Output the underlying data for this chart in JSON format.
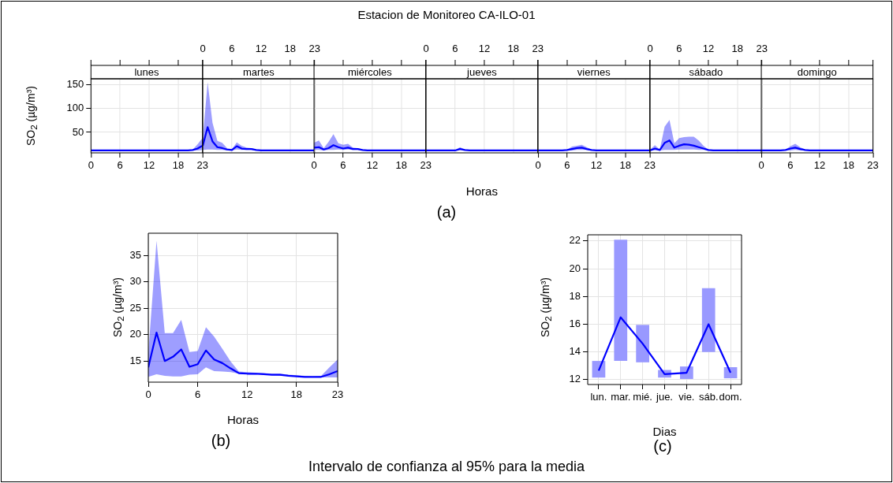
{
  "chart_data": [
    {
      "type": "line",
      "subtitle": "lunes",
      "ylabel": "SO$_{2}$ (µg/m³)",
      "grid": true,
      "xlim": [
        0,
        23
      ],
      "xticks": [
        0,
        6,
        12,
        18,
        23
      ],
      "ylim": [
        7,
        162
      ],
      "yticks": [
        50,
        100,
        150
      ],
      "series": [
        {
          "color": "#0000ff",
          "x": [
            0,
            1,
            2,
            3,
            4,
            5,
            6,
            7,
            8,
            9,
            10,
            11,
            12,
            13,
            14,
            15,
            16,
            17,
            18,
            19,
            20,
            21,
            22,
            23
          ],
          "values": [
            12,
            12,
            12,
            12,
            12,
            12,
            12,
            12,
            12,
            12,
            12,
            12,
            12,
            12,
            12,
            12,
            12,
            12,
            12,
            12,
            12,
            13,
            16,
            22
          ],
          "lower": [
            12,
            12,
            12,
            12,
            12,
            12,
            12,
            12,
            12,
            12,
            12,
            12,
            12,
            12,
            12,
            12,
            12,
            12,
            12,
            12,
            12,
            12,
            12,
            13
          ],
          "upper": [
            13,
            13,
            13,
            13,
            13,
            13,
            13,
            13,
            13,
            13,
            13,
            13,
            13,
            13,
            13,
            13,
            13,
            13,
            13,
            13,
            13,
            14,
            25,
            38
          ]
        }
      ]
    },
    {
      "type": "line",
      "subtitle": "martes",
      "grid": true,
      "tick_labels": "x",
      "xlim": [
        0,
        23
      ],
      "x2lim": [
        0,
        23
      ],
      "x2ticks": [
        0,
        6,
        12,
        18,
        23
      ],
      "ylim": [
        7,
        162
      ],
      "yticks": [
        50,
        100,
        150
      ],
      "series": [
        {
          "color": "#0000ff",
          "x": [
            0,
            1,
            2,
            3,
            4,
            5,
            6,
            7,
            8,
            9,
            10,
            11,
            12,
            13,
            14,
            15,
            16,
            17,
            18,
            19,
            20,
            21,
            22,
            23
          ],
          "values": [
            22,
            61,
            31,
            19,
            17,
            14,
            13,
            21,
            16,
            15,
            15,
            13,
            12,
            12,
            12,
            12,
            12,
            12,
            12,
            12,
            12,
            12,
            12,
            12
          ],
          "lower": [
            13,
            14,
            14,
            13,
            13,
            12,
            12,
            14,
            13,
            13,
            13,
            12,
            12,
            12,
            12,
            12,
            12,
            12,
            12,
            12,
            12,
            12,
            12,
            12
          ],
          "upper": [
            38,
            155,
            70,
            32,
            28,
            17,
            15,
            29,
            22,
            18,
            17,
            14,
            13,
            13,
            13,
            13,
            13,
            13,
            13,
            13,
            13,
            13,
            13,
            13
          ]
        }
      ]
    },
    {
      "type": "line",
      "subtitle": "miércoles",
      "grid": true,
      "tick_labels": "x",
      "xlim": [
        0,
        23
      ],
      "xticks": [
        0,
        6,
        12,
        18,
        23
      ],
      "ylim": [
        7,
        162
      ],
      "yticks": [
        50,
        100,
        150
      ],
      "series": [
        {
          "color": "#0000ff",
          "x": [
            0,
            1,
            2,
            3,
            4,
            5,
            6,
            7,
            8,
            9,
            10,
            11,
            12,
            13,
            14,
            15,
            16,
            17,
            18,
            19,
            20,
            21,
            22,
            23
          ],
          "values": [
            18,
            19,
            14,
            17,
            23,
            19,
            16,
            18,
            15,
            15,
            13,
            12,
            12,
            12,
            12,
            12,
            12,
            12,
            12,
            12,
            12,
            12,
            12,
            12
          ],
          "lower": [
            13,
            13,
            12,
            13,
            13,
            14,
            13,
            14,
            13,
            13,
            12,
            12,
            12,
            12,
            12,
            12,
            12,
            12,
            12,
            12,
            12,
            12,
            12,
            12
          ],
          "upper": [
            28,
            33,
            17,
            30,
            46,
            27,
            24,
            26,
            18,
            17,
            14,
            13,
            13,
            13,
            13,
            13,
            13,
            13,
            13,
            13,
            13,
            13,
            13,
            13
          ]
        }
      ]
    },
    {
      "type": "line",
      "title": "Estacion de Monitoreo CA-ILO-01",
      "subtitle": "jueves",
      "xlabel": "Horas",
      "annotations": [
        "(a)"
      ],
      "grid": true,
      "tick_labels": "x",
      "xlim": [
        0,
        23
      ],
      "x2lim": [
        0,
        23
      ],
      "x2ticks": [
        0,
        6,
        12,
        18,
        23
      ],
      "ylim": [
        7,
        162
      ],
      "yticks": [
        50,
        100,
        150
      ],
      "series": [
        {
          "color": "#0000ff",
          "x": [
            0,
            1,
            2,
            3,
            4,
            5,
            6,
            7,
            8,
            9,
            10,
            11,
            12,
            13,
            14,
            15,
            16,
            17,
            18,
            19,
            20,
            21,
            22,
            23
          ],
          "values": [
            12,
            12,
            12,
            12,
            12,
            12,
            12,
            15,
            13,
            12,
            12,
            12,
            12,
            12,
            12,
            12,
            12,
            12,
            12,
            12,
            12,
            12,
            12,
            12
          ],
          "lower": [
            12,
            12,
            12,
            12,
            12,
            12,
            12,
            13,
            12,
            12,
            12,
            12,
            12,
            12,
            12,
            12,
            12,
            12,
            12,
            12,
            12,
            12,
            12,
            12
          ],
          "upper": [
            13,
            13,
            13,
            13,
            13,
            13,
            13,
            19,
            14,
            13,
            13,
            13,
            13,
            13,
            13,
            13,
            13,
            13,
            13,
            13,
            13,
            13,
            13,
            13
          ]
        }
      ]
    },
    {
      "type": "line",
      "subtitle": "viernes",
      "grid": true,
      "tick_labels": "x",
      "xlim": [
        0,
        23
      ],
      "xticks": [
        0,
        6,
        12,
        18,
        23
      ],
      "ylim": [
        7,
        162
      ],
      "yticks": [
        50,
        100,
        150
      ],
      "series": [
        {
          "color": "#0000ff",
          "x": [
            0,
            1,
            2,
            3,
            4,
            5,
            6,
            7,
            8,
            9,
            10,
            11,
            12,
            13,
            14,
            15,
            16,
            17,
            18,
            19,
            20,
            21,
            22,
            23
          ],
          "values": [
            12,
            12,
            12,
            12,
            12,
            12,
            13,
            15,
            17,
            18,
            15,
            13,
            12,
            12,
            12,
            12,
            12,
            12,
            12,
            12,
            12,
            12,
            12,
            12
          ],
          "lower": [
            12,
            12,
            12,
            12,
            12,
            12,
            12,
            12,
            13,
            13,
            13,
            12,
            12,
            12,
            12,
            12,
            12,
            12,
            12,
            12,
            12,
            12,
            12,
            12
          ],
          "upper": [
            13,
            13,
            13,
            13,
            13,
            13,
            14,
            20,
            22,
            24,
            19,
            14,
            13,
            13,
            13,
            13,
            13,
            13,
            13,
            13,
            13,
            13,
            13,
            13
          ]
        }
      ]
    },
    {
      "type": "line",
      "subtitle": "sábado",
      "grid": true,
      "tick_labels": "x",
      "xlim": [
        0,
        23
      ],
      "x2lim": [
        0,
        23
      ],
      "x2ticks": [
        0,
        6,
        12,
        18,
        23
      ],
      "ylim": [
        7,
        162
      ],
      "yticks": [
        50,
        100,
        150
      ],
      "series": [
        {
          "color": "#0000ff",
          "x": [
            0,
            1,
            2,
            3,
            4,
            5,
            6,
            7,
            8,
            9,
            10,
            11,
            12,
            13,
            14,
            15,
            16,
            17,
            18,
            19,
            20,
            21,
            22,
            23
          ],
          "values": [
            12,
            16,
            13,
            28,
            33,
            18,
            22,
            25,
            24,
            22,
            19,
            16,
            13,
            12,
            12,
            12,
            12,
            12,
            12,
            12,
            12,
            12,
            12,
            12
          ],
          "lower": [
            12,
            12,
            12,
            13,
            13,
            13,
            14,
            14,
            14,
            14,
            13,
            13,
            12,
            12,
            12,
            12,
            12,
            12,
            12,
            12,
            12,
            12,
            12,
            12
          ],
          "upper": [
            14,
            23,
            14,
            62,
            76,
            27,
            38,
            40,
            41,
            41,
            33,
            22,
            14,
            13,
            13,
            13,
            13,
            13,
            13,
            13,
            13,
            13,
            13,
            13
          ]
        }
      ]
    },
    {
      "type": "line",
      "subtitle": "domingo",
      "grid": true,
      "tick_labels": "x",
      "xlim": [
        0,
        23
      ],
      "xticks": [
        0,
        6,
        12,
        18,
        23
      ],
      "ylim": [
        7,
        162
      ],
      "yticks": [
        50,
        100,
        150
      ],
      "series": [
        {
          "color": "#0000ff",
          "x": [
            0,
            1,
            2,
            3,
            4,
            5,
            6,
            7,
            8,
            9,
            10,
            11,
            12,
            13,
            14,
            15,
            16,
            17,
            18,
            19,
            20,
            21,
            22,
            23
          ],
          "values": [
            12,
            12,
            12,
            12,
            12,
            13,
            16,
            18,
            15,
            13,
            12,
            12,
            12,
            12,
            12,
            12,
            12,
            12,
            12,
            12,
            12,
            12,
            12,
            12
          ],
          "lower": [
            12,
            12,
            12,
            12,
            12,
            12,
            12,
            13,
            12,
            12,
            12,
            12,
            12,
            12,
            12,
            12,
            12,
            12,
            12,
            12,
            12,
            12,
            12,
            12
          ],
          "upper": [
            13,
            13,
            13,
            13,
            13,
            14,
            21,
            26,
            19,
            14,
            13,
            13,
            13,
            13,
            13,
            13,
            13,
            13,
            13,
            13,
            13,
            13,
            13,
            13
          ]
        }
      ]
    },
    {
      "type": "line",
      "xlabel": "Horas",
      "ylabel": "SO$_{2}$ (µg/m³)",
      "annotations": [
        "(b)"
      ],
      "grid": true,
      "xlim": [
        0,
        23
      ],
      "xticks": [
        0,
        6,
        12,
        18,
        23
      ],
      "ylim": [
        11,
        39.2
      ],
      "yticks": [
        15,
        20,
        25,
        30,
        35
      ],
      "series": [
        {
          "color": "#0000ff",
          "x": [
            0,
            1,
            2,
            3,
            4,
            5,
            6,
            7,
            8,
            9,
            10,
            11,
            12,
            13,
            14,
            15,
            16,
            17,
            18,
            19,
            20,
            21,
            22,
            23
          ],
          "values": [
            13.8,
            20.4,
            15,
            15.8,
            17.2,
            13.9,
            14.4,
            17,
            15.3,
            14.6,
            13.6,
            12.7,
            12.6,
            12.6,
            12.5,
            12.4,
            12.4,
            12.2,
            12.1,
            12,
            12,
            12,
            12.5,
            13.1
          ],
          "lower": [
            12,
            12.5,
            12.2,
            12.1,
            12.1,
            12.4,
            12.5,
            13.8,
            13.1,
            13,
            12.9,
            12.6,
            12.5,
            12.4,
            12.4,
            12.3,
            12.2,
            12.2,
            12,
            12,
            11.9,
            11.9,
            11.9,
            11.9
          ],
          "upper": [
            16.5,
            37.8,
            20.3,
            20.3,
            22.8,
            16.7,
            16.9,
            21.4,
            19.6,
            17.3,
            14.9,
            13,
            12.9,
            12.8,
            12.7,
            12.6,
            12.6,
            12.4,
            12.3,
            12.2,
            12.1,
            12.2,
            13.8,
            15.3
          ]
        }
      ]
    },
    {
      "type": "bar",
      "xlabel": "Dias",
      "ylabel": "SO$_{2}$ (µg/m³)",
      "annotations": [
        "(c)",
        "Intervalo de confianza al 95% para la media"
      ],
      "grid": true,
      "categories": [
        "lun.",
        "mar.",
        "mié.",
        "jue.",
        "vie.",
        "sáb.",
        "dom."
      ],
      "ylim": [
        11.65,
        22.45
      ],
      "yticks": [
        12,
        14,
        16,
        18,
        20,
        22
      ],
      "series": [
        {
          "color": "#9999ff",
          "base": [
            12.15,
            13.35,
            13.25,
            12.15,
            12.05,
            14,
            12.1
          ],
          "values": [
            1.2,
            8.75,
            2.7,
            0.55,
            0.9,
            4.6,
            0.8
          ]
        },
        {
          "type": "line",
          "color": "#0000ff",
          "values": [
            12.65,
            16.5,
            14.6,
            12.4,
            12.5,
            16,
            12.5
          ]
        }
      ]
    }
  ]
}
